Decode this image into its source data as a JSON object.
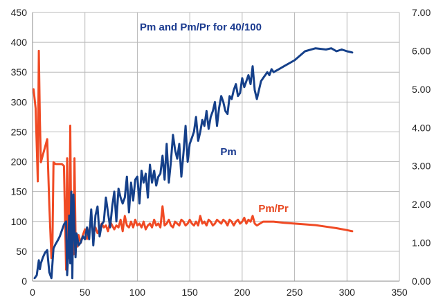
{
  "chart_data": {
    "type": "line",
    "title": "Pm and Pm/Pr for 40/100",
    "title_color": "#1a3a8f",
    "xlabel": "",
    "ylabel": "",
    "xlim": [
      0,
      350
    ],
    "ylim": [
      0,
      450
    ],
    "y2lim": [
      0,
      7
    ],
    "x_ticks": [
      "0",
      "50",
      "100",
      "150",
      "200",
      "250",
      "300",
      "350"
    ],
    "x_tick_values": [
      0,
      50,
      100,
      150,
      200,
      250,
      300,
      350
    ],
    "y_ticks": [
      "0",
      "50",
      "100",
      "150",
      "200",
      "250",
      "300",
      "350",
      "400",
      "450"
    ],
    "y_tick_values": [
      0,
      50,
      100,
      150,
      200,
      250,
      300,
      350,
      400,
      450
    ],
    "y2_ticks": [
      "0.00",
      "1.00",
      "2.00",
      "3.00",
      "4.00",
      "5.00",
      "6.00",
      "7.00"
    ],
    "y2_tick_values": [
      0,
      1,
      2,
      3,
      4,
      5,
      6,
      7
    ],
    "grid": true,
    "series": [
      {
        "name": "Pm",
        "axis": "left",
        "color": "#15408a",
        "label_color": "#1a3a8f",
        "x": [
          2,
          4,
          6,
          7,
          8,
          10,
          12,
          14,
          16,
          18,
          20,
          22,
          24,
          26,
          28,
          30,
          32,
          33,
          34,
          35,
          36,
          37,
          38,
          39,
          40,
          41,
          42,
          44,
          46,
          48,
          50,
          52,
          54,
          56,
          58,
          60,
          62,
          64,
          66,
          68,
          70,
          72,
          74,
          76,
          78,
          80,
          82,
          84,
          86,
          88,
          90,
          92,
          94,
          96,
          98,
          100,
          102,
          104,
          106,
          108,
          110,
          112,
          114,
          116,
          118,
          120,
          122,
          124,
          126,
          128,
          130,
          132,
          134,
          136,
          138,
          140,
          142,
          144,
          146,
          148,
          150,
          152,
          154,
          156,
          158,
          160,
          162,
          164,
          166,
          168,
          170,
          172,
          174,
          176,
          178,
          180,
          182,
          184,
          186,
          188,
          190,
          192,
          194,
          196,
          198,
          200,
          202,
          204,
          206,
          208,
          210,
          212,
          214,
          216,
          218,
          220,
          222,
          224,
          226,
          228,
          230,
          235,
          240,
          250,
          260,
          270,
          280,
          285,
          290,
          295,
          300,
          305
        ],
        "values": [
          5,
          10,
          35,
          20,
          30,
          40,
          48,
          52,
          15,
          5,
          55,
          62,
          68,
          75,
          85,
          95,
          100,
          10,
          45,
          110,
          30,
          150,
          5,
          145,
          90,
          40,
          80,
          60,
          65,
          75,
          70,
          90,
          70,
          120,
          60,
          110,
          125,
          75,
          95,
          100,
          140,
          115,
          90,
          125,
          150,
          100,
          155,
          140,
          130,
          140,
          175,
          115,
          165,
          135,
          170,
          175,
          130,
          185,
          165,
          180,
          140,
          195,
          165,
          185,
          160,
          175,
          180,
          210,
          170,
          230,
          165,
          200,
          245,
          220,
          205,
          230,
          175,
          215,
          260,
          200,
          230,
          240,
          250,
          275,
          235,
          250,
          270,
          260,
          285,
          255,
          275,
          285,
          300,
          260,
          290,
          310,
          300,
          285,
          280,
          310,
          305,
          320,
          330,
          310,
          315,
          340,
          325,
          335,
          345,
          330,
          360,
          320,
          305,
          320,
          335,
          340,
          345,
          350,
          345,
          355,
          350,
          355,
          360,
          370,
          385,
          390,
          388,
          390,
          385,
          388,
          385,
          383
        ]
      },
      {
        "name": "Pm/Pr",
        "axis": "right",
        "color": "#f04a24",
        "label_color": "#e8471f",
        "x": [
          1,
          3,
          5,
          6,
          7,
          8,
          9,
          10,
          12,
          14,
          16,
          18,
          19,
          20,
          22,
          24,
          26,
          28,
          30,
          32,
          33,
          34,
          35,
          36,
          37,
          38,
          39,
          40,
          41,
          42,
          43,
          44,
          46,
          48,
          50,
          52,
          54,
          56,
          58,
          60,
          62,
          64,
          66,
          68,
          70,
          72,
          74,
          76,
          78,
          80,
          82,
          84,
          86,
          88,
          90,
          92,
          94,
          96,
          98,
          100,
          102,
          104,
          106,
          108,
          110,
          112,
          114,
          116,
          118,
          120,
          122,
          124,
          126,
          128,
          130,
          132,
          134,
          136,
          138,
          140,
          142,
          144,
          146,
          148,
          150,
          152,
          154,
          156,
          158,
          160,
          162,
          164,
          166,
          168,
          170,
          172,
          174,
          176,
          178,
          180,
          182,
          184,
          186,
          188,
          190,
          192,
          194,
          196,
          198,
          200,
          202,
          204,
          206,
          208,
          210,
          212,
          214,
          220,
          230,
          240,
          250,
          260,
          270,
          280,
          290,
          300,
          305
        ],
        "values": [
          5.0,
          4.5,
          2.6,
          6.0,
          4.2,
          3.1,
          3.2,
          3.3,
          3.5,
          3.7,
          2.0,
          0.6,
          1.0,
          3.1,
          3.05,
          3.05,
          3.05,
          3.05,
          3.0,
          0.3,
          3.2,
          1.5,
          0.6,
          4.05,
          1.0,
          2.0,
          0.7,
          3.2,
          1.2,
          1.0,
          0.9,
          1.2,
          1.0,
          1.2,
          1.35,
          1.1,
          1.3,
          1.6,
          1.2,
          1.4,
          1.25,
          1.35,
          1.5,
          1.4,
          1.45,
          1.3,
          1.55,
          1.45,
          1.35,
          1.45,
          1.4,
          1.6,
          1.3,
          1.7,
          1.45,
          1.4,
          1.55,
          1.4,
          1.6,
          1.45,
          1.5,
          1.4,
          1.55,
          1.35,
          1.45,
          1.5,
          1.4,
          1.6,
          1.45,
          1.5,
          1.4,
          1.95,
          1.45,
          1.5,
          1.6,
          1.45,
          1.4,
          1.55,
          1.5,
          1.45,
          1.6,
          1.55,
          1.45,
          1.5,
          1.6,
          1.5,
          1.45,
          1.55,
          1.45,
          1.7,
          1.5,
          1.55,
          1.45,
          1.6,
          1.55,
          1.45,
          1.5,
          1.6,
          1.55,
          1.5,
          1.6,
          1.55,
          1.45,
          1.6,
          1.55,
          1.45,
          1.55,
          1.6,
          1.5,
          1.55,
          1.65,
          1.5,
          1.6,
          1.55,
          1.7,
          1.5,
          1.45,
          1.55,
          1.55,
          1.52,
          1.5,
          1.48,
          1.46,
          1.42,
          1.38,
          1.33,
          1.3
        ]
      }
    ]
  }
}
